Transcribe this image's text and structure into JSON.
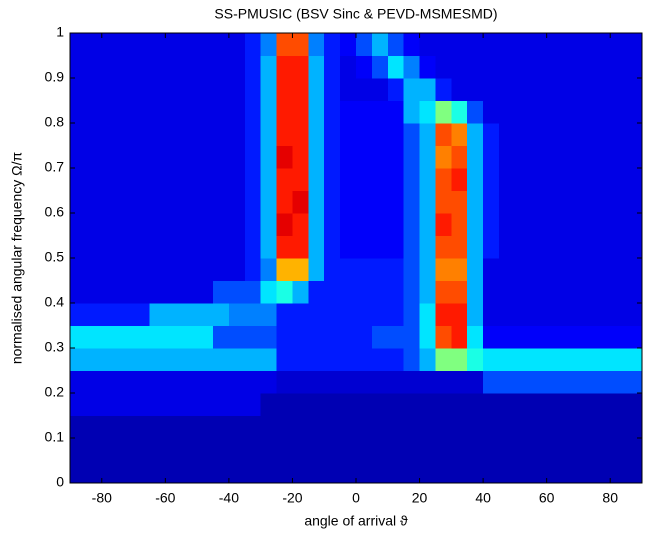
{
  "chart_data": {
    "type": "heatmap",
    "title": "SS-PMUSIC  (BSV Sinc & PEVD-MSMESMD)",
    "xlabel": "angle of arrival ϑ",
    "ylabel": "normalised angular frequency Ω/π",
    "colormap": "jet",
    "clim": [
      0,
      1
    ],
    "xlim": [
      -90,
      90
    ],
    "ylim": [
      0,
      1
    ],
    "xticks": [
      -80,
      -60,
      -40,
      -20,
      0,
      20,
      40,
      60,
      80
    ],
    "yticks": [
      0,
      0.1,
      0.2,
      0.3,
      0.4,
      0.5,
      0.6,
      0.7,
      0.8,
      0.9,
      1
    ],
    "x": [
      -87.5,
      -82.5,
      -77.5,
      -72.5,
      -67.5,
      -62.5,
      -57.5,
      -52.5,
      -47.5,
      -42.5,
      -37.5,
      -32.5,
      -27.5,
      -22.5,
      -17.5,
      -12.5,
      -7.5,
      -2.5,
      2.5,
      7.5,
      12.5,
      17.5,
      22.5,
      27.5,
      32.5,
      37.5,
      42.5,
      47.5,
      52.5,
      57.5,
      62.5,
      67.5,
      72.5,
      77.5,
      82.5,
      87.5
    ],
    "y": [
      0.025,
      0.075,
      0.125,
      0.175,
      0.225,
      0.275,
      0.325,
      0.375,
      0.425,
      0.475,
      0.525,
      0.575,
      0.625,
      0.675,
      0.725,
      0.775,
      0.825,
      0.875,
      0.925,
      0.975
    ],
    "z": [
      [
        0.05,
        0.05,
        0.05,
        0.05,
        0.05,
        0.05,
        0.05,
        0.05,
        0.05,
        0.05,
        0.05,
        0.05,
        0.05,
        0.05,
        0.05,
        0.05,
        0.05,
        0.05,
        0.05,
        0.05,
        0.05,
        0.05,
        0.05,
        0.05,
        0.05,
        0.05,
        0.05,
        0.05,
        0.05,
        0.05,
        0.05,
        0.05,
        0.05,
        0.05,
        0.05,
        0.05
      ],
      [
        0.05,
        0.05,
        0.05,
        0.05,
        0.05,
        0.05,
        0.05,
        0.05,
        0.05,
        0.05,
        0.05,
        0.05,
        0.05,
        0.05,
        0.05,
        0.05,
        0.05,
        0.05,
        0.05,
        0.05,
        0.05,
        0.05,
        0.05,
        0.05,
        0.05,
        0.05,
        0.05,
        0.05,
        0.05,
        0.05,
        0.05,
        0.05,
        0.05,
        0.05,
        0.05,
        0.05
      ],
      [
        0.05,
        0.05,
        0.05,
        0.05,
        0.05,
        0.05,
        0.05,
        0.05,
        0.05,
        0.05,
        0.05,
        0.05,
        0.05,
        0.05,
        0.05,
        0.05,
        0.05,
        0.05,
        0.05,
        0.05,
        0.05,
        0.05,
        0.05,
        0.05,
        0.05,
        0.05,
        0.05,
        0.05,
        0.05,
        0.05,
        0.05,
        0.05,
        0.05,
        0.05,
        0.05,
        0.05
      ],
      [
        0.1,
        0.1,
        0.1,
        0.1,
        0.1,
        0.1,
        0.1,
        0.1,
        0.1,
        0.1,
        0.1,
        0.1,
        0.05,
        0.05,
        0.05,
        0.05,
        0.05,
        0.05,
        0.05,
        0.05,
        0.05,
        0.05,
        0.05,
        0.05,
        0.05,
        0.05,
        0.05,
        0.05,
        0.05,
        0.05,
        0.05,
        0.05,
        0.05,
        0.05,
        0.05,
        0.05
      ],
      [
        0.1,
        0.1,
        0.1,
        0.1,
        0.1,
        0.1,
        0.1,
        0.1,
        0.1,
        0.1,
        0.1,
        0.1,
        0.1,
        0.08,
        0.08,
        0.08,
        0.08,
        0.08,
        0.08,
        0.08,
        0.08,
        0.08,
        0.08,
        0.08,
        0.08,
        0.08,
        0.2,
        0.2,
        0.2,
        0.2,
        0.2,
        0.2,
        0.2,
        0.2,
        0.2,
        0.2
      ],
      [
        0.3,
        0.3,
        0.3,
        0.3,
        0.3,
        0.3,
        0.3,
        0.3,
        0.3,
        0.3,
        0.3,
        0.3,
        0.3,
        0.15,
        0.15,
        0.15,
        0.15,
        0.15,
        0.15,
        0.15,
        0.15,
        0.2,
        0.3,
        0.5,
        0.5,
        0.4,
        0.35,
        0.35,
        0.35,
        0.35,
        0.35,
        0.35,
        0.35,
        0.35,
        0.35,
        0.35
      ],
      [
        0.35,
        0.35,
        0.35,
        0.35,
        0.35,
        0.35,
        0.35,
        0.35,
        0.35,
        0.2,
        0.2,
        0.2,
        0.2,
        0.15,
        0.15,
        0.15,
        0.15,
        0.15,
        0.15,
        0.2,
        0.2,
        0.2,
        0.35,
        0.8,
        0.85,
        0.35,
        0.12,
        0.12,
        0.12,
        0.12,
        0.12,
        0.12,
        0.12,
        0.12,
        0.12,
        0.12
      ],
      [
        0.15,
        0.15,
        0.15,
        0.15,
        0.15,
        0.3,
        0.3,
        0.3,
        0.3,
        0.3,
        0.25,
        0.25,
        0.25,
        0.15,
        0.15,
        0.15,
        0.15,
        0.15,
        0.15,
        0.15,
        0.15,
        0.2,
        0.35,
        0.85,
        0.85,
        0.3,
        0.1,
        0.1,
        0.1,
        0.1,
        0.1,
        0.1,
        0.1,
        0.1,
        0.1,
        0.1
      ],
      [
        0.1,
        0.1,
        0.1,
        0.1,
        0.1,
        0.1,
        0.1,
        0.1,
        0.1,
        0.2,
        0.2,
        0.2,
        0.35,
        0.4,
        0.3,
        0.15,
        0.15,
        0.15,
        0.15,
        0.15,
        0.15,
        0.2,
        0.3,
        0.8,
        0.8,
        0.3,
        0.1,
        0.1,
        0.1,
        0.1,
        0.1,
        0.1,
        0.1,
        0.1,
        0.1,
        0.1
      ],
      [
        0.1,
        0.1,
        0.1,
        0.1,
        0.1,
        0.1,
        0.1,
        0.1,
        0.1,
        0.1,
        0.1,
        0.15,
        0.25,
        0.7,
        0.7,
        0.3,
        0.15,
        0.15,
        0.15,
        0.15,
        0.15,
        0.2,
        0.3,
        0.75,
        0.75,
        0.3,
        0.1,
        0.1,
        0.1,
        0.1,
        0.1,
        0.1,
        0.1,
        0.1,
        0.1,
        0.1
      ],
      [
        0.1,
        0.1,
        0.1,
        0.1,
        0.1,
        0.1,
        0.1,
        0.1,
        0.1,
        0.1,
        0.1,
        0.15,
        0.3,
        0.85,
        0.85,
        0.3,
        0.15,
        0.12,
        0.12,
        0.12,
        0.12,
        0.2,
        0.3,
        0.8,
        0.8,
        0.3,
        0.15,
        0.1,
        0.1,
        0.1,
        0.1,
        0.1,
        0.1,
        0.1,
        0.1,
        0.1
      ],
      [
        0.1,
        0.1,
        0.1,
        0.1,
        0.1,
        0.1,
        0.1,
        0.1,
        0.1,
        0.1,
        0.1,
        0.15,
        0.3,
        0.9,
        0.85,
        0.3,
        0.15,
        0.12,
        0.12,
        0.12,
        0.12,
        0.2,
        0.3,
        0.85,
        0.8,
        0.3,
        0.15,
        0.1,
        0.1,
        0.1,
        0.1,
        0.1,
        0.1,
        0.1,
        0.1,
        0.1
      ],
      [
        0.1,
        0.1,
        0.1,
        0.1,
        0.1,
        0.1,
        0.1,
        0.1,
        0.1,
        0.1,
        0.1,
        0.15,
        0.3,
        0.85,
        0.9,
        0.3,
        0.15,
        0.12,
        0.12,
        0.12,
        0.12,
        0.2,
        0.3,
        0.8,
        0.8,
        0.3,
        0.15,
        0.1,
        0.1,
        0.1,
        0.1,
        0.1,
        0.1,
        0.1,
        0.1,
        0.1
      ],
      [
        0.1,
        0.1,
        0.1,
        0.1,
        0.1,
        0.1,
        0.1,
        0.1,
        0.1,
        0.1,
        0.1,
        0.15,
        0.3,
        0.85,
        0.85,
        0.3,
        0.15,
        0.12,
        0.12,
        0.12,
        0.12,
        0.2,
        0.3,
        0.8,
        0.85,
        0.3,
        0.15,
        0.1,
        0.1,
        0.1,
        0.1,
        0.1,
        0.1,
        0.1,
        0.1,
        0.1
      ],
      [
        0.1,
        0.1,
        0.1,
        0.1,
        0.1,
        0.1,
        0.1,
        0.1,
        0.1,
        0.1,
        0.1,
        0.15,
        0.3,
        0.9,
        0.85,
        0.3,
        0.15,
        0.12,
        0.12,
        0.12,
        0.12,
        0.2,
        0.3,
        0.75,
        0.8,
        0.3,
        0.15,
        0.1,
        0.1,
        0.1,
        0.1,
        0.1,
        0.1,
        0.1,
        0.1,
        0.1
      ],
      [
        0.1,
        0.1,
        0.1,
        0.1,
        0.1,
        0.1,
        0.1,
        0.1,
        0.1,
        0.1,
        0.1,
        0.15,
        0.3,
        0.85,
        0.85,
        0.3,
        0.15,
        0.12,
        0.12,
        0.12,
        0.12,
        0.2,
        0.3,
        0.8,
        0.75,
        0.3,
        0.15,
        0.1,
        0.1,
        0.1,
        0.1,
        0.1,
        0.1,
        0.1,
        0.1,
        0.1
      ],
      [
        0.1,
        0.1,
        0.1,
        0.1,
        0.1,
        0.1,
        0.1,
        0.1,
        0.1,
        0.1,
        0.1,
        0.15,
        0.3,
        0.85,
        0.85,
        0.3,
        0.15,
        0.12,
        0.12,
        0.12,
        0.12,
        0.3,
        0.35,
        0.5,
        0.4,
        0.2,
        0.1,
        0.1,
        0.1,
        0.1,
        0.1,
        0.1,
        0.1,
        0.1,
        0.1,
        0.1
      ],
      [
        0.1,
        0.1,
        0.1,
        0.1,
        0.1,
        0.1,
        0.1,
        0.1,
        0.1,
        0.1,
        0.1,
        0.15,
        0.3,
        0.85,
        0.85,
        0.3,
        0.15,
        0.1,
        0.1,
        0.1,
        0.15,
        0.3,
        0.3,
        0.15,
        0.1,
        0.1,
        0.1,
        0.1,
        0.1,
        0.1,
        0.1,
        0.1,
        0.1,
        0.1,
        0.1,
        0.1
      ],
      [
        0.1,
        0.1,
        0.1,
        0.1,
        0.1,
        0.1,
        0.1,
        0.1,
        0.1,
        0.1,
        0.1,
        0.15,
        0.3,
        0.85,
        0.85,
        0.3,
        0.15,
        0.1,
        0.12,
        0.2,
        0.35,
        0.25,
        0.12,
        0.1,
        0.1,
        0.1,
        0.1,
        0.1,
        0.1,
        0.1,
        0.1,
        0.1,
        0.1,
        0.1,
        0.1,
        0.1
      ],
      [
        0.1,
        0.1,
        0.1,
        0.1,
        0.1,
        0.1,
        0.1,
        0.1,
        0.1,
        0.1,
        0.1,
        0.15,
        0.25,
        0.8,
        0.8,
        0.25,
        0.15,
        0.12,
        0.2,
        0.3,
        0.2,
        0.12,
        0.1,
        0.1,
        0.1,
        0.1,
        0.1,
        0.1,
        0.1,
        0.1,
        0.1,
        0.1,
        0.1,
        0.1,
        0.1,
        0.1
      ]
    ]
  }
}
